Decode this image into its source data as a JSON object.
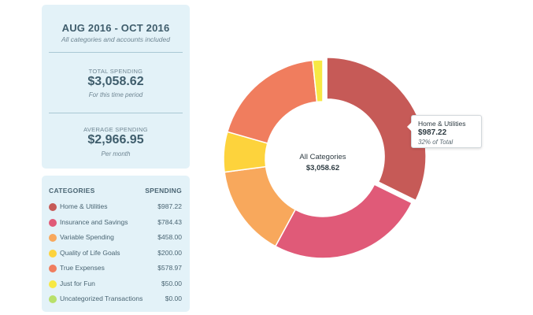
{
  "summary": {
    "period": "AUG 2016 - OCT 2016",
    "scope_note": "All categories and accounts included",
    "total_label": "TOTAL SPENDING",
    "total_value": "$3,058.62",
    "total_sub": "For this time period",
    "average_label": "AVERAGE SPENDING",
    "average_value": "$2,966.95",
    "average_sub": "Per month"
  },
  "legend": {
    "header_category": "CATEGORIES",
    "header_spending": "SPENDING",
    "items": [
      {
        "name": "Home & Utilities",
        "amount": "$987.22",
        "color": "#c65a57"
      },
      {
        "name": "Insurance and Savings",
        "amount": "$784.43",
        "color": "#e05a78"
      },
      {
        "name": "Variable Spending",
        "amount": "$458.00",
        "color": "#f8a85c"
      },
      {
        "name": "Quality of Life Goals",
        "amount": "$200.00",
        "color": "#fdd33c"
      },
      {
        "name": "True Expenses",
        "amount": "$578.97",
        "color": "#f07d5e"
      },
      {
        "name": "Just for Fun",
        "amount": "$50.00",
        "color": "#f7e843"
      },
      {
        "name": "Uncategorized Transactions",
        "amount": "$0.00",
        "color": "#b8e06a"
      }
    ]
  },
  "donut_center": {
    "title": "All Categories",
    "value": "$3,058.62"
  },
  "tooltip": {
    "name": "Home & Utilities",
    "value": "$987.22",
    "share": "32% of Total"
  },
  "chart_data": {
    "type": "pie",
    "donut": true,
    "categories": [
      "Home & Utilities",
      "Insurance and Savings",
      "Variable Spending",
      "Quality of Life Goals",
      "True Expenses",
      "Just for Fun",
      "Uncategorized Transactions"
    ],
    "values": [
      987.22,
      784.43,
      458.0,
      200.0,
      578.97,
      50.0,
      0.0
    ],
    "colors": [
      "#c65a57",
      "#e05a78",
      "#f8a85c",
      "#fdd33c",
      "#f07d5e",
      "#f7e843",
      "#b8e06a"
    ],
    "start": "12 o'clock",
    "direction": "clockwise",
    "highlighted": "Home & Utilities"
  }
}
